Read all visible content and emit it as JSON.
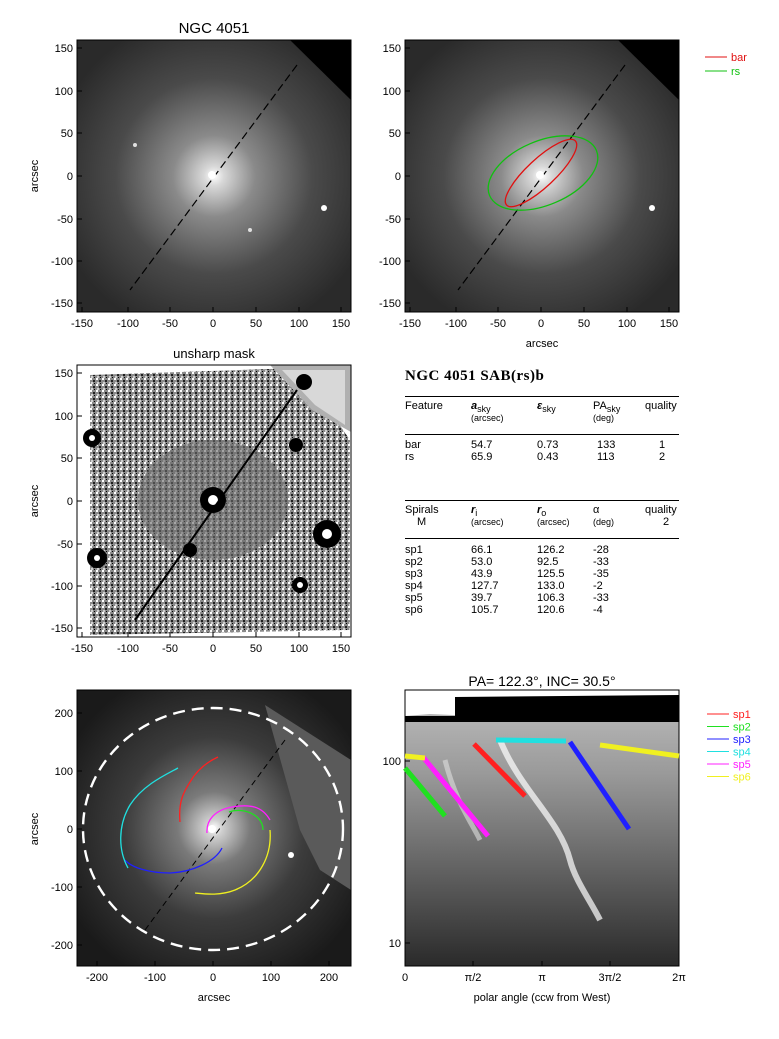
{
  "panels": {
    "p1": {
      "title": "NGC 4051",
      "ylabel": "arcsec",
      "xticks": [
        "-150",
        "-100",
        "-50",
        "0",
        "50",
        "100",
        "150"
      ],
      "yticks": [
        "150",
        "100",
        "50",
        "0",
        "-50",
        "-100",
        "-150"
      ]
    },
    "p2": {
      "xlabel": "arcsec",
      "xticks": [
        "-150",
        "-100",
        "-50",
        "0",
        "50",
        "100",
        "150"
      ],
      "yticks": [
        "150",
        "100",
        "50",
        "0",
        "-50",
        "-100",
        "-150"
      ],
      "legend": [
        {
          "label": "bar",
          "color": "#e01010"
        },
        {
          "label": "rs",
          "color": "#10c010"
        }
      ]
    },
    "p3": {
      "title": "unsharp mask",
      "ylabel": "arcsec",
      "xticks": [
        "-150",
        "-100",
        "-50",
        "0",
        "50",
        "100",
        "150"
      ],
      "yticks": [
        "150",
        "100",
        "50",
        "0",
        "-50",
        "-100",
        "-150"
      ]
    },
    "p5": {
      "xlabel": "arcsec",
      "ylabel": "arcsec",
      "xticks": [
        "-200",
        "-100",
        "0",
        "100",
        "200"
      ],
      "yticks": [
        "200",
        "100",
        "0",
        "-100",
        "-200"
      ]
    },
    "p6": {
      "title": "PA= 122.3°, INC=  30.5°",
      "xlabel": "polar angle (ccw from West)",
      "xticks": [
        "0",
        "π/2",
        "π",
        "3π/2",
        "2π"
      ],
      "yticks": [
        "100",
        "10"
      ],
      "legend": [
        {
          "label": "sp1",
          "color": "#ff2020"
        },
        {
          "label": "sp2",
          "color": "#20e020"
        },
        {
          "label": "sp3",
          "color": "#2020ff"
        },
        {
          "label": "sp4",
          "color": "#20e0e0"
        },
        {
          "label": "sp5",
          "color": "#ff20ff"
        },
        {
          "label": "sp6",
          "color": "#f0f020"
        }
      ]
    }
  },
  "table": {
    "title": "NGC 4051  SAB(rs)b",
    "feature_head": {
      "c1": "Feature",
      "c2": "a",
      "c2sub": "sky",
      "c2unit": "(arcsec)",
      "c3": "ε",
      "c3sub": "sky",
      "c4": "PA",
      "c4sub": "sky",
      "c4unit": "(deg)",
      "c5": "quality"
    },
    "features": [
      {
        "name": "bar",
        "a": "54.7",
        "e": "0.73",
        "pa": "133",
        "q": "1"
      },
      {
        "name": "rs",
        "a": "65.9",
        "e": "0.43",
        "pa": "113",
        "q": "2"
      }
    ],
    "spiral_head": {
      "c1": "Spirals",
      "c1b": "M",
      "c2": "r",
      "c2sub": "i",
      "c2unit": "(arcsec)",
      "c3": "r",
      "c3sub": "o",
      "c3unit": "(arcsec)",
      "c4": "α",
      "c4unit": "(deg)",
      "c5": "quality",
      "c5b": "2"
    },
    "spirals": [
      {
        "name": "sp1",
        "ri": "66.1",
        "ro": "126.2",
        "alpha": "-28"
      },
      {
        "name": "sp2",
        "ri": "53.0",
        "ro": "92.5",
        "alpha": "-33"
      },
      {
        "name": "sp3",
        "ri": "43.9",
        "ro": "125.5",
        "alpha": "-35"
      },
      {
        "name": "sp4",
        "ri": "127.7",
        "ro": "133.0",
        "alpha": "-2"
      },
      {
        "name": "sp5",
        "ri": "39.7",
        "ro": "106.3",
        "alpha": "-33"
      },
      {
        "name": "sp6",
        "ri": "105.7",
        "ro": "120.6",
        "alpha": "-4"
      }
    ]
  }
}
